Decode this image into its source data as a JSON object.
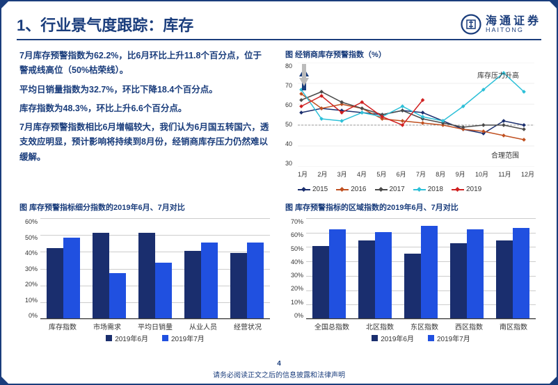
{
  "header": {
    "title": "1、行业景气度跟踪：库存",
    "logo_cn": "海通证券",
    "logo_en": "HAITONG"
  },
  "body": {
    "p1": "7月库存预警指数为62.2%，比6月环比上升11.8个百分点，位于警戒线高位（50%枯荣线）。",
    "p2": "平均日销量指数为32.7%，环比下降18.4个百分点。",
    "p3": "库存指数为48.3%，环比上升6.6个百分点。",
    "p4": "7月库存预警指数相比6月增幅较大，我们认为6月国五转国六，透支效应明显，预计影响将持续到8月份，经销商库存压力仍然难以缓解。"
  },
  "line_chart": {
    "title": "图 经销商库存预警指数（%）",
    "ymin": 30,
    "ymax": 80,
    "yticks": [
      30,
      40,
      50,
      60,
      70,
      80
    ],
    "xlabels": [
      "1月",
      "2月",
      "3月",
      "4月",
      "5月",
      "6月",
      "7月",
      "8月",
      "9月",
      "10月",
      "11月",
      "12月"
    ],
    "ann_up": "库存压力升高",
    "ann_down": "合理范围",
    "threshold": 50,
    "series": [
      {
        "name": "2015",
        "color": "#1a2e6e",
        "values": [
          56,
          58,
          57,
          56,
          55,
          57,
          56,
          52,
          48,
          46,
          52,
          50
        ]
      },
      {
        "name": "2016",
        "color": "#c05020",
        "values": [
          65,
          58,
          60,
          58,
          53,
          52,
          51,
          50,
          48,
          47,
          45,
          43
        ]
      },
      {
        "name": "2017",
        "color": "#4a4a4a",
        "values": [
          62,
          66,
          61,
          58,
          55,
          57,
          53,
          51,
          49,
          50,
          50,
          48
        ]
      },
      {
        "name": "2018",
        "color": "#2dc0d8",
        "values": [
          67,
          53,
          52,
          56,
          54,
          59,
          54,
          52,
          59,
          67,
          75,
          66
        ]
      },
      {
        "name": "2019",
        "color": "#d02020",
        "values": [
          59,
          64,
          56,
          61,
          54,
          50,
          62,
          null,
          null,
          null,
          null,
          null
        ]
      }
    ],
    "legend": [
      "2015",
      "2016",
      "2017",
      "2018",
      "2019"
    ]
  },
  "bar_left": {
    "title": "图 库存预警指标细分指数的2019年6月、7月对比",
    "ymin": 0,
    "ymax": 60,
    "yticks": [
      0,
      10,
      20,
      30,
      40,
      50,
      60
    ],
    "categories": [
      "库存指数",
      "市场需求",
      "平均日销量",
      "从业人员",
      "经营状况"
    ],
    "series": [
      {
        "name": "2019年6月",
        "color": "#1a2e6e",
        "values": [
          42,
          51,
          51,
          40,
          39
        ]
      },
      {
        "name": "2019年7月",
        "color": "#2050e0",
        "values": [
          48,
          27,
          33,
          45,
          45
        ]
      }
    ]
  },
  "bar_right": {
    "title": "图 库存预警指标的区域指数的2019年6月、7月对比",
    "ymin": 0,
    "ymax": 70,
    "yticks": [
      0,
      10,
      20,
      30,
      40,
      50,
      60,
      70
    ],
    "categories": [
      "全国总指数",
      "北区指数",
      "东区指数",
      "西区指数",
      "南区指数"
    ],
    "series": [
      {
        "name": "2019年6月",
        "color": "#1a2e6e",
        "values": [
          50,
          54,
          45,
          52,
          54
        ]
      },
      {
        "name": "2019年7月",
        "color": "#2050e0",
        "values": [
          62,
          60,
          64,
          62,
          63
        ]
      }
    ]
  },
  "footer": {
    "page": "4",
    "disclaimer": "请务必阅读正文之后的信息披露和法律声明"
  }
}
